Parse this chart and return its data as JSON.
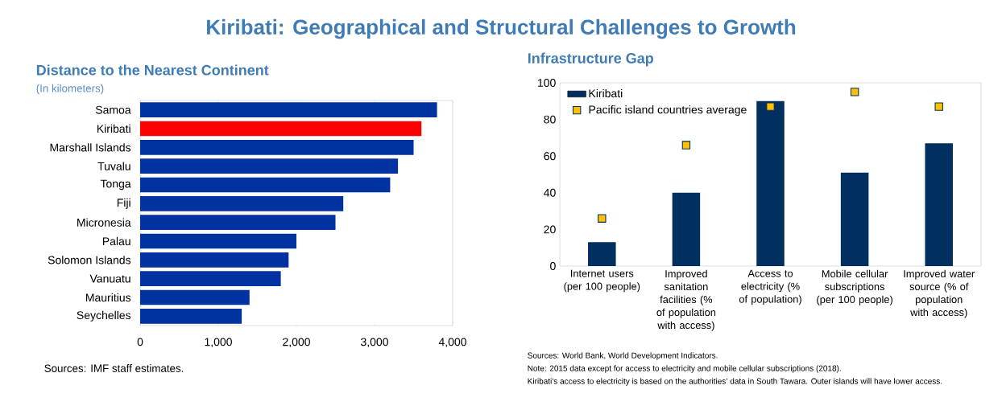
{
  "chart_data": [
    {
      "type": "other",
      "title": "Kiribati: Geographical and Structural Challenges to Growth"
    },
    {
      "type": "bar",
      "orientation": "horizontal",
      "title": "Distance to the Nearest Continent",
      "subtitle": "(In kilometers)",
      "categories": [
        "Samoa",
        "Kiribati",
        "Marshall Islands",
        "Tuvalu",
        "Tonga",
        "Fiji",
        "Micronesia",
        "Palau",
        "Solomon Islands",
        "Vanuatu",
        "Mauritius",
        "Seychelles"
      ],
      "values": [
        3800,
        3600,
        3500,
        3300,
        3200,
        2600,
        2500,
        2000,
        1900,
        1800,
        1400,
        1300
      ],
      "colors": [
        "#0033a0",
        "#ff0000",
        "#0033a0",
        "#0033a0",
        "#0033a0",
        "#0033a0",
        "#0033a0",
        "#0033a0",
        "#0033a0",
        "#0033a0",
        "#0033a0",
        "#0033a0"
      ],
      "xlim": [
        0,
        4000
      ],
      "xticks": [
        0,
        {
          "value": 1000,
          "label": "1,000"
        },
        {
          "value": 2000,
          "label": "2,000"
        },
        {
          "value": 3000,
          "label": "3,000"
        },
        {
          "value": 4000,
          "label": "4,000"
        }
      ],
      "annotations": [
        "Sources: IMF staff estimates."
      ]
    },
    {
      "type": "bar",
      "title": "Infrastructure Gap",
      "categories": [
        "Internet users (per 100 people)",
        "Improved sanitation facilities (% of population with access)",
        "Access to electricity (% of population)",
        "Mobile cellular subscriptions (per 100 people)",
        "Improved water source (% of population with access)"
      ],
      "series": [
        {
          "name": "Kiribati",
          "type": "bar",
          "color": "#00305f",
          "values": [
            13,
            40,
            90,
            51,
            67
          ]
        },
        {
          "name": "Pacific island countries average",
          "type": "scatter",
          "marker": "square",
          "color": "#ffc000",
          "values": [
            26,
            66,
            87,
            95,
            87
          ]
        }
      ],
      "ylim": [
        0,
        100
      ],
      "yticks": [
        0,
        20,
        40,
        60,
        80,
        100
      ],
      "legend": "top left",
      "annotations": [
        "Sources: World Bank, World Development Indicators.",
        "Note: 2015 data except for access to electricity and mobile cellular subscriptions (2018).",
        "Kiribati’s access to electricity is based on the authorities’ data in South Tawara. Outer islands will have lower access."
      ]
    }
  ]
}
